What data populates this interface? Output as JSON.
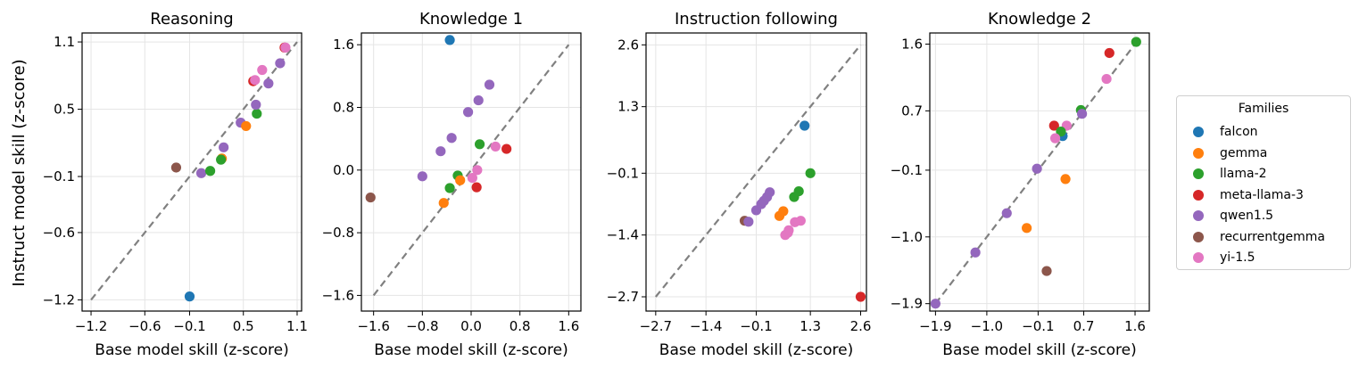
{
  "families": [
    {
      "key": "falcon",
      "label": "falcon",
      "color": "#1f77b4"
    },
    {
      "key": "gemma",
      "label": "gemma",
      "color": "#ff7f0e"
    },
    {
      "key": "llama2",
      "label": "llama-2",
      "color": "#2ca02c"
    },
    {
      "key": "llama3",
      "label": "meta-llama-3",
      "color": "#d62728"
    },
    {
      "key": "qwen",
      "label": "qwen1.5",
      "color": "#9467bd"
    },
    {
      "key": "rgemma",
      "label": "recurrentgemma",
      "color": "#8c564b"
    },
    {
      "key": "yi",
      "label": "yi-1.5",
      "color": "#e377c2"
    }
  ],
  "legend": {
    "title": "Families"
  },
  "ylabel_shared": "Instruct model skill (z-score)",
  "chart_data": [
    {
      "type": "scatter",
      "title": "Reasoning",
      "xlabel": "Base model skill (z-score)",
      "xlim": [
        -1.3,
        1.15
      ],
      "ylim": [
        -1.3,
        1.18
      ],
      "xticks": [
        -1.2,
        -0.6,
        -0.1,
        0.5,
        1.1
      ],
      "xtick_labels": [
        "−1.2",
        "−0.6",
        "−0.1",
        "0.5",
        "1.1"
      ],
      "yticks": [
        1.1,
        0.5,
        -0.1,
        -0.6,
        -1.2
      ],
      "ytick_labels": [
        "1.1",
        "0.5",
        "−0.1",
        "−0.6",
        "−1.2"
      ],
      "diagonal": [
        -1.2,
        1.1
      ],
      "points": [
        {
          "f": "falcon",
          "x": -0.1,
          "y": -1.17
        },
        {
          "f": "rgemma",
          "x": -0.25,
          "y": -0.02
        },
        {
          "f": "qwen",
          "x": 0.03,
          "y": -0.07
        },
        {
          "f": "llama2",
          "x": 0.13,
          "y": -0.05
        },
        {
          "f": "gemma",
          "x": 0.26,
          "y": 0.06
        },
        {
          "f": "llama2",
          "x": 0.25,
          "y": 0.05
        },
        {
          "f": "qwen",
          "x": 0.28,
          "y": 0.16
        },
        {
          "f": "qwen",
          "x": 0.47,
          "y": 0.38
        },
        {
          "f": "gemma",
          "x": 0.53,
          "y": 0.35
        },
        {
          "f": "llama2",
          "x": 0.65,
          "y": 0.46
        },
        {
          "f": "qwen",
          "x": 0.64,
          "y": 0.54
        },
        {
          "f": "llama3",
          "x": 0.61,
          "y": 0.75
        },
        {
          "f": "yi",
          "x": 0.63,
          "y": 0.76
        },
        {
          "f": "yi",
          "x": 0.71,
          "y": 0.85
        },
        {
          "f": "qwen",
          "x": 0.78,
          "y": 0.73
        },
        {
          "f": "qwen",
          "x": 0.91,
          "y": 0.91
        },
        {
          "f": "llama3",
          "x": 0.96,
          "y": 1.05
        },
        {
          "f": "yi",
          "x": 0.97,
          "y": 1.05
        }
      ]
    },
    {
      "type": "scatter",
      "title": "Knowledge 1",
      "xlabel": "Base model skill (z-score)",
      "xlim": [
        -1.8,
        1.8
      ],
      "ylim": [
        -1.8,
        1.75
      ],
      "xticks": [
        -1.6,
        -0.8,
        0.0,
        0.8,
        1.6
      ],
      "xtick_labels": [
        "−1.6",
        "−0.8",
        "0.0",
        "0.8",
        "1.6"
      ],
      "yticks": [
        1.6,
        0.8,
        0.0,
        -0.8,
        -1.6
      ],
      "ytick_labels": [
        "1.6",
        "0.8",
        "0.0",
        "−0.8",
        "−1.6"
      ],
      "diagonal": [
        -1.6,
        1.6
      ],
      "points": [
        {
          "f": "falcon",
          "x": -0.35,
          "y": 1.66
        },
        {
          "f": "rgemma",
          "x": -1.65,
          "y": -0.35
        },
        {
          "f": "gemma",
          "x": -0.45,
          "y": -0.42
        },
        {
          "f": "qwen",
          "x": -0.8,
          "y": -0.08
        },
        {
          "f": "llama2",
          "x": -0.35,
          "y": -0.23
        },
        {
          "f": "llama2",
          "x": -0.22,
          "y": -0.07
        },
        {
          "f": "gemma",
          "x": -0.18,
          "y": -0.13
        },
        {
          "f": "qwen",
          "x": -0.5,
          "y": 0.24
        },
        {
          "f": "qwen",
          "x": -0.32,
          "y": 0.41
        },
        {
          "f": "yi",
          "x": 0.02,
          "y": -0.1
        },
        {
          "f": "yi",
          "x": 0.1,
          "y": 0.0
        },
        {
          "f": "llama3",
          "x": 0.09,
          "y": -0.22
        },
        {
          "f": "llama2",
          "x": 0.14,
          "y": 0.33
        },
        {
          "f": "yi",
          "x": 0.4,
          "y": 0.3
        },
        {
          "f": "llama3",
          "x": 0.58,
          "y": 0.27
        },
        {
          "f": "qwen",
          "x": -0.05,
          "y": 0.74
        },
        {
          "f": "qwen",
          "x": 0.12,
          "y": 0.89
        },
        {
          "f": "qwen",
          "x": 0.3,
          "y": 1.09
        }
      ]
    },
    {
      "type": "scatter",
      "title": "Instruction following",
      "xlabel": "Base model skill (z-score)",
      "xlim": [
        -2.95,
        2.75
      ],
      "ylim": [
        -3.0,
        2.85
      ],
      "xticks": [
        -2.7,
        -1.4,
        -0.1,
        1.3,
        2.6
      ],
      "xtick_labels": [
        "−2.7",
        "−1.4",
        "−0.1",
        "1.3",
        "2.6"
      ],
      "yticks": [
        2.6,
        1.3,
        -0.1,
        -1.4,
        -2.7
      ],
      "ytick_labels": [
        "2.6",
        "1.3",
        "−0.1",
        "−1.4",
        "−2.7"
      ],
      "diagonal": [
        -2.7,
        2.6
      ],
      "points": [
        {
          "f": "falcon",
          "x": 1.15,
          "y": 0.9
        },
        {
          "f": "llama2",
          "x": 1.3,
          "y": -0.1
        },
        {
          "f": "llama3",
          "x": 2.6,
          "y": -2.7
        },
        {
          "f": "rgemma",
          "x": -0.4,
          "y": -1.1
        },
        {
          "f": "qwen",
          "x": -0.3,
          "y": -1.12
        },
        {
          "f": "qwen",
          "x": -0.1,
          "y": -0.88
        },
        {
          "f": "qwen",
          "x": 0.03,
          "y": -0.75
        },
        {
          "f": "qwen",
          "x": 0.1,
          "y": -0.68
        },
        {
          "f": "qwen",
          "x": 0.18,
          "y": -0.6
        },
        {
          "f": "qwen",
          "x": 0.25,
          "y": -0.5
        },
        {
          "f": "gemma",
          "x": 0.5,
          "y": -1.0
        },
        {
          "f": "gemma",
          "x": 0.6,
          "y": -0.9
        },
        {
          "f": "llama2",
          "x": 0.88,
          "y": -0.6
        },
        {
          "f": "llama2",
          "x": 1.0,
          "y": -0.48
        },
        {
          "f": "yi",
          "x": 0.9,
          "y": -1.13
        },
        {
          "f": "yi",
          "x": 1.05,
          "y": -1.1
        },
        {
          "f": "yi",
          "x": 0.65,
          "y": -1.4
        },
        {
          "f": "yi",
          "x": 0.72,
          "y": -1.35
        },
        {
          "f": "yi",
          "x": 0.74,
          "y": -1.3
        }
      ]
    },
    {
      "type": "scatter",
      "title": "Knowledge 2",
      "xlabel": "Base model skill (z-score)",
      "xlim": [
        -2.0,
        1.85
      ],
      "ylim": [
        -2.0,
        1.75
      ],
      "xticks": [
        -1.9,
        -1.0,
        -0.1,
        0.7,
        1.6
      ],
      "xtick_labels": [
        "−1.9",
        "−1.0",
        "−0.1",
        "0.7",
        "1.6"
      ],
      "yticks": [
        1.6,
        0.7,
        -0.1,
        -1.0,
        -1.9
      ],
      "ytick_labels": [
        "1.6",
        "0.7",
        "−0.1",
        "−1.0",
        "−1.9"
      ],
      "diagonal": [
        -1.9,
        1.6
      ],
      "points": [
        {
          "f": "llama2",
          "x": 1.62,
          "y": 1.63
        },
        {
          "f": "llama3",
          "x": 1.15,
          "y": 1.48
        },
        {
          "f": "yi",
          "x": 1.1,
          "y": 1.13
        },
        {
          "f": "llama2",
          "x": 0.65,
          "y": 0.71
        },
        {
          "f": "qwen",
          "x": 0.67,
          "y": 0.66
        },
        {
          "f": "yi",
          "x": 0.4,
          "y": 0.5
        },
        {
          "f": "llama3",
          "x": 0.18,
          "y": 0.5
        },
        {
          "f": "falcon",
          "x": 0.33,
          "y": 0.36
        },
        {
          "f": "llama2",
          "x": 0.3,
          "y": 0.42
        },
        {
          "f": "yi",
          "x": 0.2,
          "y": 0.33
        },
        {
          "f": "qwen",
          "x": -0.12,
          "y": -0.08
        },
        {
          "f": "gemma",
          "x": 0.38,
          "y": -0.22
        },
        {
          "f": "qwen",
          "x": -0.65,
          "y": -0.68
        },
        {
          "f": "qwen",
          "x": -1.2,
          "y": -1.21
        },
        {
          "f": "gemma",
          "x": -0.3,
          "y": -0.88
        },
        {
          "f": "rgemma",
          "x": 0.05,
          "y": -1.46
        },
        {
          "f": "qwen",
          "x": -1.9,
          "y": -1.9
        }
      ]
    }
  ]
}
